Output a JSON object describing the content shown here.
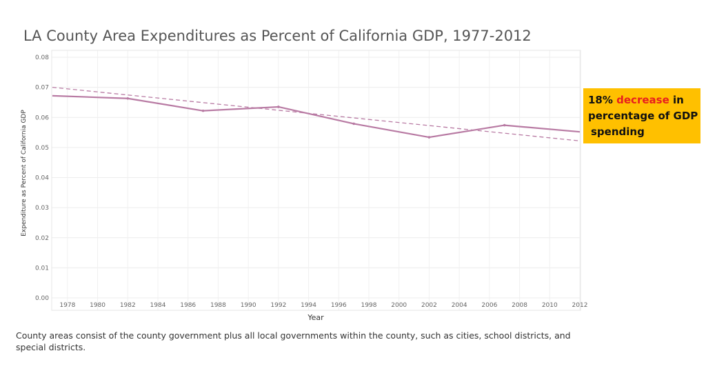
{
  "chart_data": {
    "type": "line",
    "title": "LA County Area Expenditures as Percent of California GDP, 1977-2012",
    "xlabel": "Year",
    "ylabel": "Expenditure as Percent of California GDP",
    "xlim": [
      1977,
      2012
    ],
    "ylim": [
      0,
      0.08
    ],
    "x_ticks": [
      "1978",
      "1980",
      "1982",
      "1984",
      "1986",
      "1988",
      "1990",
      "1992",
      "1994",
      "1996",
      "1998",
      "2000",
      "2002",
      "2004",
      "2006",
      "2008",
      "2010",
      "2012"
    ],
    "y_ticks": [
      "0.00",
      "0.01",
      "0.02",
      "0.03",
      "0.04",
      "0.05",
      "0.06",
      "0.07",
      "0.08"
    ],
    "grid": true,
    "series": [
      {
        "color": "#b87aa3",
        "x": [
          1977,
          1982,
          1987,
          1992,
          1997,
          2002,
          2007,
          2012
        ],
        "y": [
          0.0672,
          0.0663,
          0.0622,
          0.0635,
          0.0579,
          0.0534,
          0.0574,
          0.0552
        ]
      }
    ],
    "trendline": {
      "style": "dashed",
      "color": "#b87aa3",
      "x": [
        1977,
        2012
      ],
      "y": [
        0.07,
        0.0522
      ]
    }
  },
  "callout": {
    "prefix": "18% ",
    "highlight": "decrease",
    "suffix": " in",
    "line2": "percentage of GDP",
    "line3": "spending",
    "background": "#ffc000",
    "highlight_color": "#e81e1e"
  },
  "footnote": "County areas consist of the county government plus all local governments within the county, such as cities, school districts, and special districts."
}
